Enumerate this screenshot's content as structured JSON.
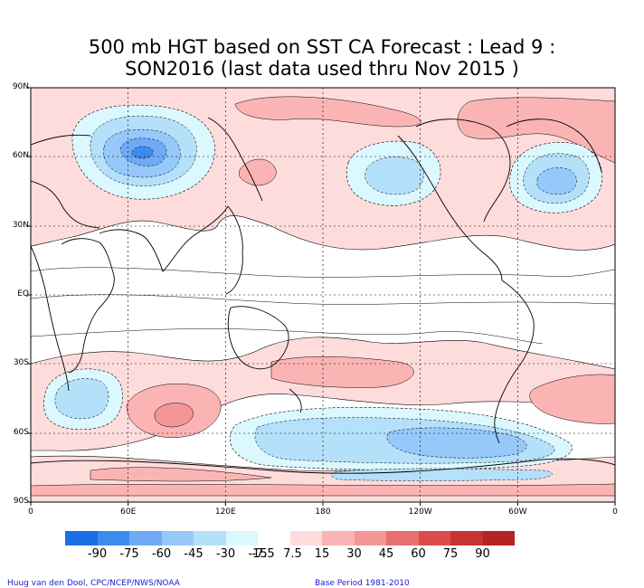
{
  "title_line1": "500 mb HGT based on SST CA Forecast : Lead 9 :",
  "title_line2": "SON2016 (last data used thru Nov 2015 )",
  "lat_labels": [
    "90N",
    "60N",
    "30N",
    "EQ",
    "30S",
    "60S",
    "90S"
  ],
  "lon_labels": [
    "0",
    "60E",
    "120E",
    "180",
    "120W",
    "60W",
    "0"
  ],
  "colorbar": {
    "colors": [
      "#1c6ee6",
      "#3c8cf0",
      "#70aaf6",
      "#96c8fa",
      "#b4e0fa",
      "#dcf8ff",
      "#ffffff",
      "#ffdcdc",
      "#fbb4b4",
      "#f49696",
      "#e87070",
      "#dc4c4c",
      "#c83232",
      "#b42424"
    ],
    "labels": [
      "-90",
      "-75",
      "-60",
      "-45",
      "-30",
      "-15",
      "-7.5",
      "7.5",
      "15",
      "30",
      "45",
      "60",
      "75",
      "90"
    ]
  },
  "credit_left": "Huug van den Dool, CPC/NCEP/NWS/NOAA",
  "credit_right": "Base Period 1981-2010",
  "colors": {
    "weak_positive": "#ffdcdc",
    "positive": "#fbb4b4",
    "strong_positive": "#f49696",
    "weak_negative": "#dcf8ff",
    "negative": "#b4e0fa",
    "strong_negative": "#70aaf6"
  }
}
